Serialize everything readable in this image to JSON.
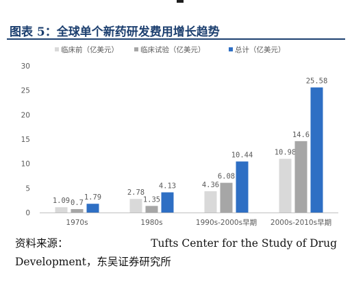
{
  "title": "图表 5：全球单个新药研发费用增长趋势",
  "source": {
    "label": "资料来源：",
    "org": "Tufts Center for the Study of Drug",
    "org_cont": "Development，东吴证券研究所"
  },
  "colors": {
    "preclinical": "#d9d9d9",
    "clinical": "#a6a6a6",
    "total": "#2e6fc4",
    "axis": "#bfbfbf",
    "text": "#595959"
  },
  "chart_data": {
    "type": "bar",
    "categories": [
      "1970s",
      "1980s",
      "1990s-2000s早期",
      "2000s-2010s早期"
    ],
    "series": [
      {
        "name": "临床前（亿美元）",
        "values": [
          1.09,
          2.78,
          4.36,
          10.98
        ],
        "labels": [
          "1.09",
          "2.78",
          "4.36",
          "10.98"
        ],
        "color_key": "preclinical"
      },
      {
        "name": "临床试验（亿美元）",
        "values": [
          0.7,
          1.35,
          6.08,
          14.6
        ],
        "labels": [
          "0.7",
          "1.35",
          "6.08",
          "14.6"
        ],
        "color_key": "clinical"
      },
      {
        "name": "总计（亿美元）",
        "values": [
          1.79,
          4.13,
          10.44,
          25.58
        ],
        "labels": [
          "1.79",
          "4.13",
          "10.44",
          "25.58"
        ],
        "color_key": "total"
      }
    ],
    "yticks": [
      "0",
      "5",
      "10",
      "15",
      "20",
      "25",
      "30"
    ],
    "ylim": [
      0,
      30
    ],
    "grid": false,
    "legend_position": "top"
  }
}
